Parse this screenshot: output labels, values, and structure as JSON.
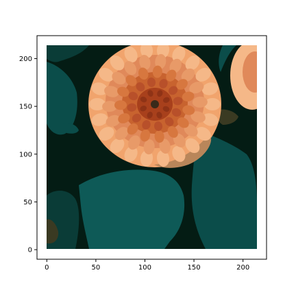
{
  "chart_data": {
    "type": "image",
    "title": "",
    "xlabel": "",
    "ylabel": "",
    "xlim": [
      -10,
      224
    ],
    "ylim": [
      -10,
      224
    ],
    "image_extent": [
      0,
      213,
      0,
      213
    ],
    "x_ticks": [
      0,
      50,
      100,
      150,
      200
    ],
    "y_ticks": [
      0,
      50,
      100,
      150,
      200
    ],
    "x_tick_labels": [
      "0",
      "50",
      "100",
      "150",
      "200"
    ],
    "y_tick_labels": [
      "0",
      "50",
      "100",
      "150",
      "200"
    ],
    "grid": false,
    "legend": "none",
    "image_subject": "posterized orange dahlia flower on dark teal foliage",
    "palette": {
      "background_dark": "#041c14",
      "teal_dark": "#0a3c37",
      "teal": "#0b4d4a",
      "teal_mid": "#0e5a57",
      "olive": "#3a3a22",
      "orange_light": "#f1a46d",
      "orange_mid": "#e0895a",
      "orange_deep": "#c8632f",
      "rust": "#a8401c",
      "tan": "#b9865a",
      "peach": "#f5b888"
    }
  }
}
